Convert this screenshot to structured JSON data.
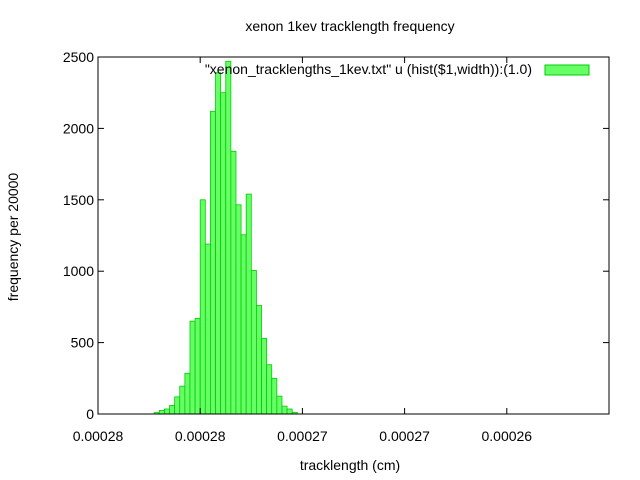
{
  "chart_data": {
    "type": "bar",
    "title": "xenon 1kev tracklength frequency",
    "xlabel": "tracklength (cm)",
    "ylabel": "frequency per 20000",
    "legend_label": "\"xenon_tracklengths_1kev.txt\" u (hist($1,width)):(1.0)",
    "legend_position": "top-right",
    "bar_color": "#66ff66",
    "bar_edge_color": "#00cc00",
    "grid": false,
    "ylim": [
      0,
      2500
    ],
    "xlim": [
      0,
      100
    ],
    "y_ticks": [
      {
        "value": 0,
        "label": "0"
      },
      {
        "value": 500,
        "label": "500"
      },
      {
        "value": 1000,
        "label": "1000"
      },
      {
        "value": 1500,
        "label": "1500"
      },
      {
        "value": 2000,
        "label": "2000"
      },
      {
        "value": 2500,
        "label": "2500"
      }
    ],
    "x_ticks": [
      {
        "value": 0,
        "label": "0.00028"
      },
      {
        "value": 20,
        "label": "0.00028"
      },
      {
        "value": 40,
        "label": "0.00027"
      },
      {
        "value": 60,
        "label": "0.00027"
      },
      {
        "value": 80,
        "label": "0.00026"
      }
    ],
    "bin_width": 1,
    "bins_start": 11,
    "values": [
      10,
      25,
      35,
      60,
      120,
      195,
      285,
      650,
      670,
      1500,
      1190,
      2120,
      2390,
      2250,
      2470,
      1840,
      1465,
      1255,
      1540,
      1005,
      760,
      530,
      345,
      250,
      125,
      55,
      35,
      12,
      0
    ]
  }
}
